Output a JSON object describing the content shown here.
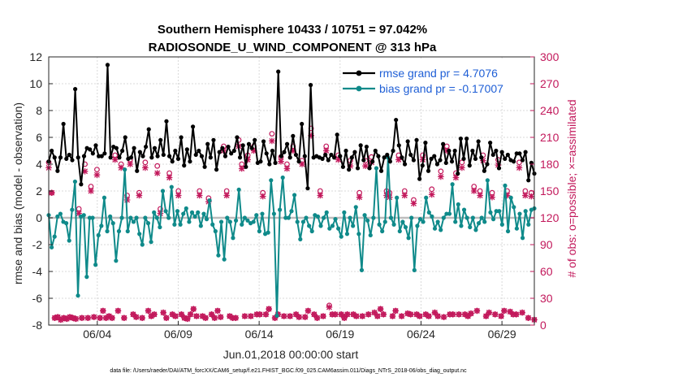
{
  "chart_data": {
    "type": "line",
    "title_line1": "Southern Hemisphere 10433 / 10751 = 97.042%",
    "title_line2": "RADIOSONDE_U_WIND_COMPONENT @ 313 hPa",
    "ylabel_left": "rmse and bias (model - observation)",
    "ylabel_right": "# of obs: o=possible; ×=assimilated",
    "xlabel": "Jun.01,2018 00:00:00 start",
    "footnote": "data file: /Users/raeder/DAI/ATM_forcXX/CAM6_setup/f.e21.FHIST_BGC.f09_025.CAM6assim.011/Diags_NTrS_2018-06/obs_diag_output.nc",
    "x_range": [
      1,
      31
    ],
    "ylim_left": [
      -8,
      12
    ],
    "ylim_right": [
      0,
      300
    ],
    "yticks_left": [
      "-8",
      "-6",
      "-4",
      "-2",
      "0",
      "2",
      "4",
      "6",
      "8",
      "10",
      "12"
    ],
    "yticks_right": [
      "0",
      "30",
      "60",
      "90",
      "120",
      "150",
      "180",
      "210",
      "240",
      "270",
      "300"
    ],
    "xticks": [
      {
        "value": 4,
        "label": "06/04"
      },
      {
        "value": 9,
        "label": "06/09"
      },
      {
        "value": 14,
        "label": "06/14"
      },
      {
        "value": 19,
        "label": "06/19"
      },
      {
        "value": 24,
        "label": "06/24"
      },
      {
        "value": 29,
        "label": "06/29"
      }
    ],
    "zero_line": 0,
    "series": [
      {
        "name": "rmse",
        "legend": "rmse grand pr = 4.7076",
        "color": "#000000",
        "values": [
          4.2,
          5.0,
          4.5,
          3.5,
          4.5,
          7.0,
          4.4,
          4.7,
          4.3,
          9.6,
          4.5,
          2.5,
          4.6,
          5.2,
          5.1,
          4.8,
          5.4,
          4.6,
          4.6,
          4.8,
          11.4,
          4.5,
          5.3,
          5.2,
          4.5,
          5.0,
          6.0,
          4.4,
          4.5,
          5.2,
          3.5,
          4.9,
          4.6,
          5.3,
          6.6,
          4.5,
          5.2,
          4.6,
          5.8,
          4.7,
          7.2,
          4.6,
          4.2,
          5.0,
          4.4,
          6.0,
          3.9,
          5.1,
          4.2,
          6.8,
          4.7,
          5.0,
          4.6,
          3.8,
          5.5,
          4.5,
          5.8,
          3.6,
          4.9,
          5.2,
          4.6,
          5.3,
          4.8,
          5.0,
          6.0,
          4.5,
          5.4,
          3.8,
          5.5,
          5.2,
          5.8,
          4.1,
          4.2,
          5.7,
          4.8,
          4.0,
          5.0,
          4.1,
          10.9,
          4.6,
          4.9,
          5.5,
          4.5,
          6.1,
          4.7,
          4.2,
          7.0,
          4.6,
          2.2,
          9.9,
          4.5,
          4.6,
          4.5,
          4.4,
          4.7,
          4.3,
          4.7,
          4.5,
          6.2,
          4.6,
          3.8,
          5.0,
          3.6,
          4.5,
          4.9,
          3.7,
          5.4,
          4.3,
          5.3,
          3.7,
          4.2,
          5.0,
          4.6,
          3.5,
          4.5,
          4.7,
          4.2,
          5.0,
          7.3,
          5.4,
          4.5,
          4.0,
          5.7,
          4.7,
          4.3,
          5.8,
          2.9,
          3.9,
          5.6,
          3.5,
          4.4,
          4.6,
          4.0,
          4.3,
          5.5,
          4.1,
          5.0,
          4.2,
          5.0,
          3.3,
          5.9,
          4.4,
          5.9,
          3.9,
          5.0,
          4.4,
          5.7,
          4.5,
          3.5,
          4.0,
          5.6,
          4.7,
          5.0,
          3.7,
          4.9,
          4.4,
          4.7,
          4.3,
          4.2,
          4.8,
          4.8,
          4.3,
          4.9,
          2.8,
          4.1,
          3.3
        ]
      },
      {
        "name": "bias",
        "legend": "bias grand pr = -0.17007",
        "color": "#0f8a8a",
        "values": [
          0.2,
          -2.2,
          -1.4,
          0.1,
          0.3,
          -0.3,
          -0.4,
          -1.7,
          0.6,
          2.7,
          -5.8,
          0.1,
          0.2,
          -4.4,
          0.0,
          0.0,
          -3.5,
          -1.3,
          -0.6,
          1.5,
          -1.0,
          0.1,
          -0.4,
          -3.2,
          -1.0,
          0.0,
          3.6,
          -1.0,
          0.0,
          -0.3,
          0.0,
          -1.2,
          -2.0,
          0.0,
          -0.4,
          -1.8,
          0.4,
          0.0,
          -0.7,
          2.0,
          0.5,
          0.0,
          2.3,
          -0.5,
          0.5,
          -0.5,
          0.3,
          0.7,
          -0.3,
          0.4,
          0.1,
          0.4,
          -0.6,
          0.3,
          -0.1,
          1.3,
          -0.5,
          -1.0,
          -2.8,
          -0.3,
          -3.1,
          0.0,
          -0.3,
          -1.5,
          -0.2,
          2.1,
          -0.5,
          0.0,
          -0.2,
          -0.4,
          -0.3,
          0.2,
          -1.0,
          0.3,
          -1.2,
          -1.1,
          2.8,
          0.3,
          -7.3,
          0.6,
          3.0,
          0.0,
          0.0,
          0.5,
          1.7,
          -0.3,
          -1.6,
          -0.3,
          0.0,
          -0.6,
          -1.0,
          0.2,
          0.1,
          -0.6,
          0.0,
          0.4,
          -0.8,
          -0.6,
          -0.1,
          -0.8,
          -1.4,
          0.4,
          -1.2,
          0.0,
          -0.6,
          0.8,
          -1.2,
          -3.9,
          0.2,
          -0.2,
          -1.3,
          0.0,
          3.7,
          -0.5,
          -1.0,
          -0.3,
          4.5,
          0.0,
          -0.5,
          1.5,
          -1.0,
          -0.3,
          -0.7,
          -1.5,
          0.0,
          -3.9,
          -0.6,
          -0.1,
          -0.3,
          1.5,
          0.4,
          0.1,
          -0.8,
          -0.3,
          -0.9,
          0.0,
          0.3,
          0.3,
          2.5,
          -0.3,
          1.0,
          -0.6,
          0.6,
          0.0,
          -0.7,
          0.0,
          -0.9,
          -0.4,
          0.0,
          -0.3,
          2.8,
          0.4,
          -0.1,
          0.5,
          0.5,
          -0.5,
          2.4,
          -1.0,
          1.5,
          0.8,
          -0.8,
          0.3,
          -1.5,
          0.5,
          -0.5,
          0.6,
          0.7
        ]
      },
      {
        "name": "obs_possible",
        "legend": "",
        "color": "#c2185b",
        "marker": "o",
        "axis": "right",
        "values": [
          182,
          148,
          8,
          9,
          6,
          8,
          7,
          9,
          8,
          7,
          130,
          8,
          180,
          8,
          155,
          9,
          174,
          8,
          16,
          8,
          10,
          8,
          190,
          16,
          180,
          8,
          145,
          185,
          12,
          9,
          148,
          8,
          182,
          16,
          10,
          12,
          178,
          130,
          14,
          8,
          170,
          12,
          10,
          150,
          12,
          8,
          7,
          12,
          18,
          10,
          150,
          10,
          8,
          142,
          12,
          8,
          16,
          9,
          200,
          150,
          10,
          8,
          8,
          207,
          180,
          10,
          190,
          10,
          200,
          12,
          12,
          148,
          12,
          18,
          214,
          8,
          12,
          188,
          10,
          180,
          10,
          200,
          12,
          9,
          184,
          9,
          16,
          220,
          12,
          8,
          150,
          10,
          200,
          22,
          12,
          12,
          190,
          12,
          8,
          12,
          184,
          12,
          10,
          148,
          10,
          184,
          12,
          188,
          14,
          10,
          18,
          12,
          150,
          148,
          10,
          16,
          190,
          10,
          150,
          13,
          12,
          140,
          12,
          10,
          190,
          12,
          10,
          152,
          14,
          10,
          172,
          9,
          200,
          12,
          12,
          170,
          12,
          182,
          12,
          10,
          13,
          155,
          16,
          150,
          190,
          10,
          14,
          148,
          12,
          185,
          10,
          16,
          150,
          15,
          12,
          12,
          182,
          14,
          150,
          8,
          148,
          6
        ]
      },
      {
        "name": "obs_assimilated",
        "legend": "",
        "color": "#c2185b",
        "marker": "x",
        "axis": "right",
        "values": [
          176,
          148,
          8,
          9,
          6,
          8,
          7,
          9,
          8,
          7,
          125,
          8,
          172,
          8,
          150,
          9,
          168,
          8,
          16,
          8,
          10,
          8,
          185,
          16,
          176,
          8,
          140,
          180,
          12,
          9,
          145,
          8,
          176,
          16,
          10,
          12,
          170,
          125,
          14,
          8,
          165,
          12,
          10,
          145,
          12,
          8,
          7,
          12,
          18,
          10,
          145,
          10,
          8,
          138,
          12,
          8,
          16,
          9,
          195,
          145,
          10,
          8,
          8,
          200,
          175,
          10,
          185,
          10,
          195,
          12,
          12,
          144,
          12,
          18,
          206,
          8,
          12,
          183,
          10,
          175,
          10,
          195,
          12,
          9,
          180,
          9,
          16,
          212,
          12,
          8,
          145,
          10,
          195,
          20,
          12,
          12,
          185,
          12,
          8,
          12,
          178,
          12,
          10,
          143,
          10,
          178,
          12,
          182,
          14,
          10,
          18,
          12,
          145,
          143,
          10,
          16,
          185,
          10,
          145,
          13,
          12,
          136,
          12,
          10,
          185,
          12,
          10,
          146,
          14,
          10,
          166,
          9,
          195,
          12,
          12,
          165,
          12,
          176,
          12,
          10,
          13,
          150,
          16,
          145,
          184,
          10,
          14,
          143,
          12,
          179,
          10,
          16,
          145,
          15,
          12,
          12,
          176,
          14,
          145,
          8,
          144,
          6
        ]
      }
    ]
  }
}
